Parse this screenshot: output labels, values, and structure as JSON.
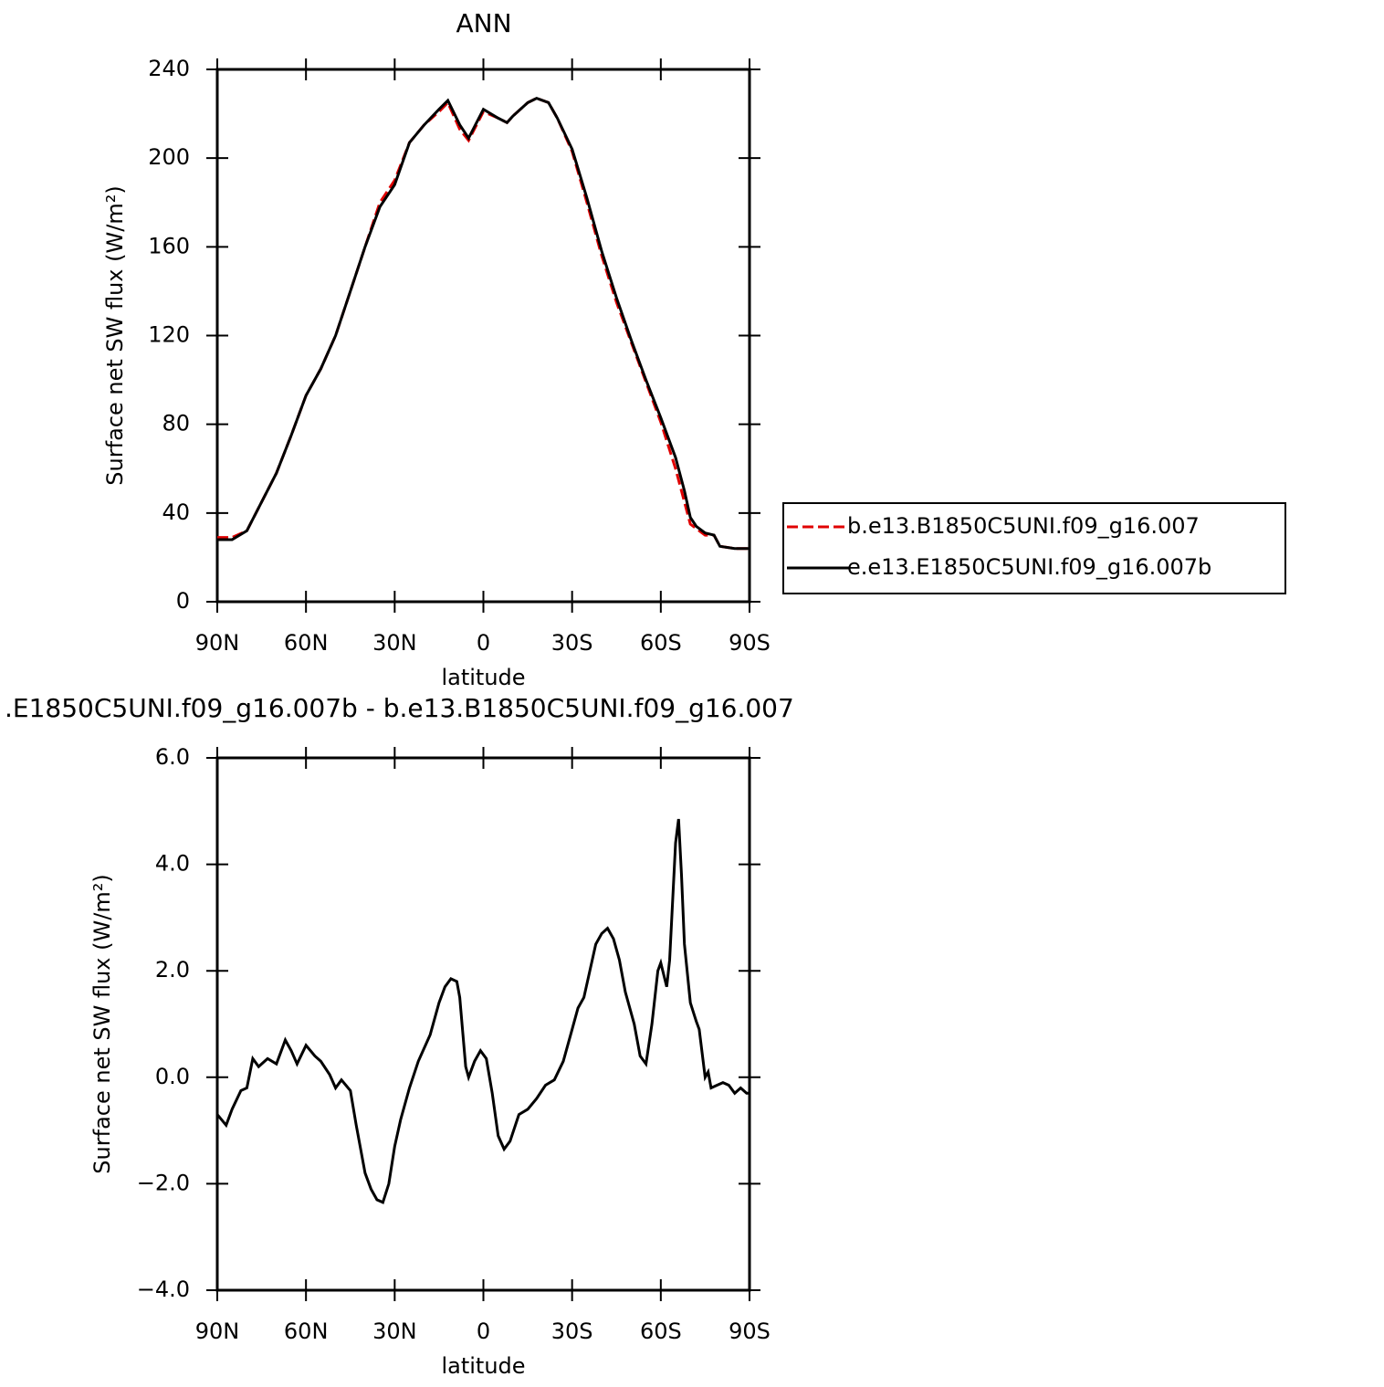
{
  "chart_data": [
    {
      "type": "line",
      "title": "ANN",
      "xlabel": "latitude",
      "ylabel": "Surface net SW flux (W/m²)",
      "xlim": [
        90,
        -90
      ],
      "xticks": [
        {
          "value": 90,
          "label": "90N"
        },
        {
          "value": 60,
          "label": "60N"
        },
        {
          "value": 30,
          "label": "30N"
        },
        0,
        {
          "value": -30,
          "label": "30S"
        },
        {
          "value": -60,
          "label": "60S"
        },
        {
          "value": -90,
          "label": "90S"
        }
      ],
      "ylim": [
        0,
        240
      ],
      "yticks": [
        0,
        40,
        80,
        120,
        160,
        200,
        240
      ],
      "x": [
        90,
        85,
        80,
        75,
        70,
        65,
        60,
        55,
        50,
        45,
        40,
        35,
        30,
        25,
        20,
        15,
        12,
        8,
        5,
        0,
        -5,
        -8,
        -10,
        -15,
        -18,
        -22,
        -25,
        -30,
        -35,
        -40,
        -45,
        -50,
        -55,
        -60,
        -65,
        -68,
        -70,
        -72,
        -75,
        -78,
        -80,
        -85,
        -90
      ],
      "legend": "right",
      "series": [
        {
          "name": "b.e13.B1850C5UNI.f09_g16.007",
          "color": "#e00000",
          "dash": true,
          "values": [
            29,
            29,
            32,
            45,
            58,
            75,
            93,
            105,
            120,
            140,
            160,
            180,
            190,
            207,
            215,
            221,
            225,
            213,
            208,
            221,
            218,
            216,
            219,
            225,
            227,
            225,
            218,
            203,
            180,
            156,
            135,
            117,
            99,
            81,
            60,
            45,
            35,
            33,
            30,
            30,
            25,
            24,
            24
          ]
        },
        {
          "name": "e.e13.E1850C5UNI.f09_g16.007b",
          "color": "#000000",
          "dash": false,
          "values": [
            28,
            28,
            32,
            45,
            58,
            75,
            93,
            105,
            120,
            140,
            160,
            178,
            188,
            207,
            215,
            222,
            226,
            215,
            209,
            222,
            218,
            216,
            219,
            225,
            227,
            225,
            218,
            204,
            182,
            158,
            137,
            118,
            100,
            83,
            65,
            50,
            38,
            34,
            31,
            30,
            25,
            24,
            24
          ]
        }
      ]
    },
    {
      "type": "line",
      "title": ".E1850C5UNI.f09_g16.007b - b.e13.B1850C5UNI.f09_g16.007",
      "xlabel": "latitude",
      "ylabel": "Surface net SW flux (W/m²)",
      "xlim": [
        90,
        -90
      ],
      "xticks": [
        {
          "value": 90,
          "label": "90N"
        },
        {
          "value": 60,
          "label": "60N"
        },
        {
          "value": 30,
          "label": "30N"
        },
        0,
        {
          "value": -30,
          "label": "30S"
        },
        {
          "value": -60,
          "label": "60S"
        },
        {
          "value": -90,
          "label": "90S"
        }
      ],
      "ylim": [
        -4,
        6
      ],
      "yticks": [
        {
          "value": -4,
          "label": "−4.0"
        },
        {
          "value": -2,
          "label": "−2.0"
        },
        {
          "value": 0,
          "label": "0.0"
        },
        {
          "value": 2,
          "label": "2.0"
        },
        {
          "value": 4,
          "label": "4.0"
        },
        {
          "value": 6,
          "label": "6.0"
        }
      ],
      "x": [
        90,
        87,
        85,
        82,
        80,
        78,
        76,
        73,
        70,
        67,
        65,
        63,
        60,
        57,
        55,
        52,
        50,
        48,
        45,
        43,
        40,
        38,
        36,
        34,
        32,
        30,
        28,
        25,
        22,
        18,
        15,
        13,
        11,
        9,
        8,
        6,
        5,
        3,
        1,
        -1,
        -3,
        -5,
        -7,
        -9,
        -12,
        -15,
        -18,
        -21,
        -24,
        -27,
        -30,
        -32,
        -34,
        -36,
        -38,
        -40,
        -42,
        -44,
        -46,
        -48,
        -51,
        -53,
        -55,
        -57,
        -59,
        -60,
        -62,
        -63,
        -65,
        -66,
        -67,
        -68,
        -70,
        -72,
        -73,
        -75,
        -76,
        -77,
        -79,
        -81,
        -83,
        -85,
        -87,
        -89,
        -90
      ],
      "series": [
        {
          "color": "#000000",
          "dash": false,
          "values": [
            -0.7,
            -0.9,
            -0.6,
            -0.25,
            -0.2,
            0.35,
            0.2,
            0.35,
            0.25,
            0.7,
            0.5,
            0.25,
            0.6,
            0.4,
            0.3,
            0.05,
            -0.2,
            -0.05,
            -0.25,
            -0.9,
            -1.8,
            -2.1,
            -2.3,
            -2.35,
            -2.0,
            -1.3,
            -0.8,
            -0.2,
            0.3,
            0.8,
            1.4,
            1.7,
            1.85,
            1.8,
            1.5,
            0.2,
            0.0,
            0.3,
            0.5,
            0.35,
            -0.3,
            -1.1,
            -1.35,
            -1.2,
            -0.7,
            -0.6,
            -0.4,
            -0.15,
            -0.05,
            0.3,
            0.9,
            1.3,
            1.5,
            2.0,
            2.5,
            2.7,
            2.8,
            2.6,
            2.2,
            1.6,
            1.0,
            0.4,
            0.25,
            1.0,
            2.0,
            2.15,
            1.7,
            2.2,
            4.4,
            4.85,
            3.8,
            2.5,
            1.4,
            1.05,
            0.9,
            0.0,
            0.1,
            -0.2,
            -0.15,
            -0.1,
            -0.15,
            -0.3,
            -0.2,
            -0.3,
            -0.3
          ]
        }
      ]
    }
  ]
}
